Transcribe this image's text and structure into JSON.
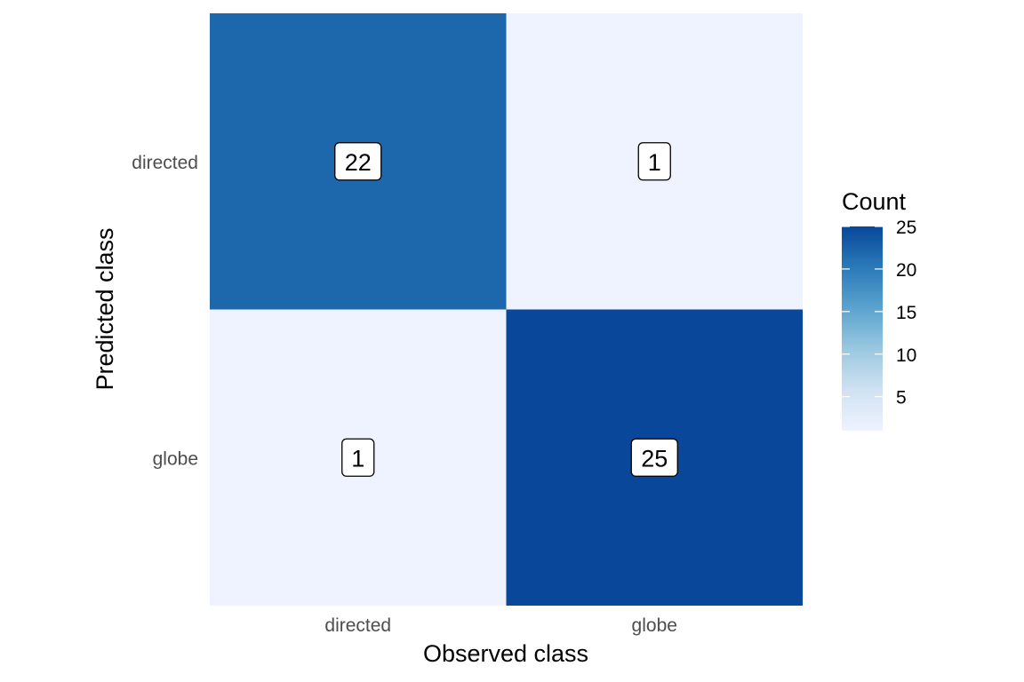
{
  "chart_data": {
    "type": "heatmap",
    "title": "",
    "xlabel": "Observed class",
    "ylabel": "Predicted class",
    "x_categories": [
      "directed",
      "globe"
    ],
    "y_categories": [
      "directed",
      "globe"
    ],
    "cells": [
      {
        "observed": "directed",
        "predicted": "directed",
        "value": 22
      },
      {
        "observed": "globe",
        "predicted": "directed",
        "value": 1
      },
      {
        "observed": "directed",
        "predicted": "globe",
        "value": 1
      },
      {
        "observed": "globe",
        "predicted": "globe",
        "value": 25
      }
    ],
    "legend": {
      "title": "Count",
      "position": "right",
      "ticks": [
        5,
        10,
        15,
        20,
        25
      ],
      "range": [
        1,
        25
      ],
      "color_low": "#eef3ff",
      "color_high": "#08479a"
    },
    "grid": false
  }
}
